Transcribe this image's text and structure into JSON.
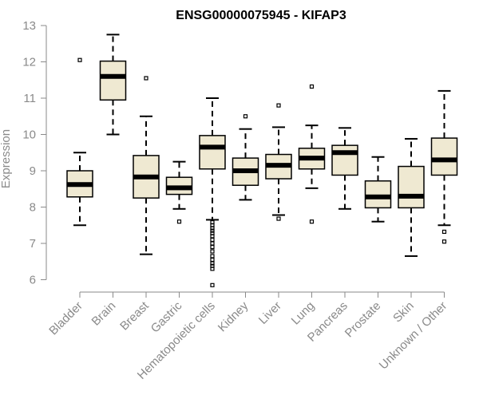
{
  "chart_data": {
    "type": "boxplot",
    "title": "ENSG00000075945 - KIFAP3",
    "xlabel": "",
    "ylabel": "Expression",
    "ylim": [
      5.8,
      13.0
    ],
    "yticks": [
      6,
      7,
      8,
      9,
      10,
      11,
      12,
      13
    ],
    "colors": {
      "box_fill": "#efe9d2",
      "box_stroke": "#000000",
      "median": "#000000",
      "axis": "#8a8a8a",
      "label": "#8a8a8a",
      "title": "#000000"
    },
    "categories": [
      "Bladder",
      "Brain",
      "Breast",
      "Gastric",
      "Hematopoietic cells",
      "Kidney",
      "Liver",
      "Lung",
      "Pancreas",
      "Prostate",
      "Skin",
      "Unknown / Other"
    ],
    "boxes": [
      {
        "label": "Bladder",
        "whisker_low": 7.5,
        "q1": 8.28,
        "median": 8.62,
        "q3": 9.0,
        "whisker_high": 9.5,
        "outliers": [
          12.05
        ]
      },
      {
        "label": "Brain",
        "whisker_low": 10.0,
        "q1": 10.95,
        "median": 11.6,
        "q3": 12.02,
        "whisker_high": 12.75,
        "outliers": []
      },
      {
        "label": "Breast",
        "whisker_low": 6.7,
        "q1": 8.25,
        "median": 8.83,
        "q3": 9.42,
        "whisker_high": 10.5,
        "outliers": [
          11.55
        ]
      },
      {
        "label": "Gastric",
        "whisker_low": 7.95,
        "q1": 8.35,
        "median": 8.53,
        "q3": 8.82,
        "whisker_high": 9.25,
        "outliers": [
          7.6
        ]
      },
      {
        "label": "Hematopoietic cells",
        "whisker_low": 7.65,
        "q1": 9.05,
        "median": 9.65,
        "q3": 9.97,
        "whisker_high": 11.0,
        "outliers": [
          7.58,
          7.5,
          7.42,
          7.35,
          7.28,
          7.2,
          7.1,
          7.0,
          6.9,
          6.78,
          6.65,
          6.55,
          6.45,
          6.38,
          6.3,
          5.85
        ]
      },
      {
        "label": "Kidney",
        "whisker_low": 8.2,
        "q1": 8.6,
        "median": 9.0,
        "q3": 9.35,
        "whisker_high": 10.15,
        "outliers": [
          10.5
        ]
      },
      {
        "label": "Liver",
        "whisker_low": 7.78,
        "q1": 8.78,
        "median": 9.15,
        "q3": 9.45,
        "whisker_high": 10.2,
        "outliers": [
          7.68,
          10.8
        ]
      },
      {
        "label": "Lung",
        "whisker_low": 8.52,
        "q1": 9.05,
        "median": 9.35,
        "q3": 9.62,
        "whisker_high": 10.25,
        "outliers": [
          7.6,
          11.32
        ]
      },
      {
        "label": "Pancreas",
        "whisker_low": 7.95,
        "q1": 8.88,
        "median": 9.5,
        "q3": 9.7,
        "whisker_high": 10.18,
        "outliers": []
      },
      {
        "label": "Prostate",
        "whisker_low": 7.6,
        "q1": 7.98,
        "median": 8.28,
        "q3": 8.72,
        "whisker_high": 9.38,
        "outliers": []
      },
      {
        "label": "Skin",
        "whisker_low": 6.65,
        "q1": 7.98,
        "median": 8.3,
        "q3": 9.12,
        "whisker_high": 9.88,
        "outliers": []
      },
      {
        "label": "Unknown / Other",
        "whisker_low": 7.5,
        "q1": 8.88,
        "median": 9.3,
        "q3": 9.9,
        "whisker_high": 11.2,
        "outliers": [
          7.32,
          7.05
        ]
      }
    ]
  }
}
